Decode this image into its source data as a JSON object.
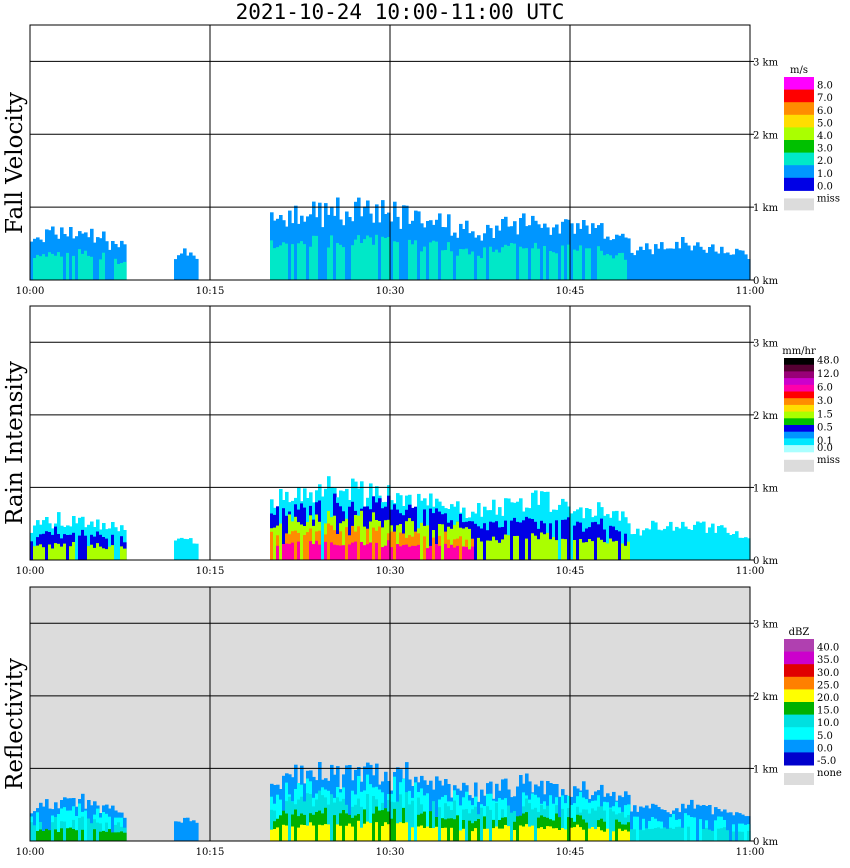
{
  "title": "2021-10-24   10:00-11:00 UTC",
  "time_ticks": [
    "10:00",
    "10:15",
    "10:30",
    "10:45",
    "11:00"
  ],
  "height_ticks": [
    "0 km",
    "1 km",
    "2 km",
    "3 km"
  ],
  "colors": {
    "grid": "#000000",
    "missing_bg": "#dcdcdc"
  },
  "chart_data": [
    {
      "type": "heatmap",
      "title": "Fall Velocity",
      "x": [
        "10:00",
        "10:15",
        "10:30",
        "10:45",
        "11:00"
      ],
      "y_ticks": [
        "0 km",
        "1 km",
        "2 km",
        "3 km"
      ],
      "xlim": [
        "10:00",
        "11:00"
      ],
      "ylim_km": [
        0,
        3.5
      ],
      "grid": true,
      "background": "white",
      "colorbar": {
        "unit": "m/s",
        "levels": [
          "8.0",
          "7.0",
          "6.0",
          "5.0",
          "4.0",
          "3.0",
          "2.0",
          "1.0",
          "0.0"
        ],
        "colors": [
          "#ff00ff",
          "#ff0000",
          "#ff8c00",
          "#ffdd00",
          "#aaff00",
          "#00c000",
          "#00e8c8",
          "#0096ff",
          "#0000e6"
        ],
        "missing_label": "miss",
        "missing_color": "#dcdcdc"
      },
      "echo_segments": [
        {
          "start": "10:00",
          "end": "10:08",
          "top_km": 0.8,
          "levels": [
            "1.0",
            "2.0"
          ]
        },
        {
          "start": "10:12",
          "end": "10:14",
          "top_km": 0.5,
          "levels": [
            "1.0"
          ]
        },
        {
          "start": "10:20",
          "end": "10:37",
          "top_km": 1.2,
          "levels": [
            "1.0",
            "2.0"
          ]
        },
        {
          "start": "10:37",
          "end": "10:50",
          "top_km": 1.0,
          "levels": [
            "1.0",
            "2.0"
          ]
        },
        {
          "start": "10:50",
          "end": "11:00",
          "top_km": 0.6,
          "levels": [
            "1.0"
          ]
        }
      ]
    },
    {
      "type": "heatmap",
      "title": "Rain Intensity",
      "x": [
        "10:00",
        "10:15",
        "10:30",
        "10:45",
        "11:00"
      ],
      "y_ticks": [
        "0 km",
        "1 km",
        "2 km",
        "3 km"
      ],
      "xlim": [
        "10:00",
        "11:00"
      ],
      "ylim_km": [
        0,
        3.5
      ],
      "grid": true,
      "background": "white",
      "colorbar": {
        "unit": "mm/hr",
        "levels": [
          "48.0",
          "",
          "12.0",
          "",
          "6.0",
          "",
          "3.0",
          "",
          "1.5",
          "",
          "0.5",
          "",
          "0.1",
          "0.0"
        ],
        "colors": [
          "#000000",
          "#550033",
          "#990077",
          "#cc00cc",
          "#ff00aa",
          "#ff0000",
          "#ff8c00",
          "#ffdd00",
          "#aaff00",
          "#00c000",
          "#0000e6",
          "#0096ff",
          "#00e8ff",
          "#aaffff"
        ],
        "missing_label": "miss",
        "missing_color": "#dcdcdc"
      },
      "echo_segments": [
        {
          "start": "10:00",
          "end": "10:08",
          "top_km": 0.7,
          "levels": [
            "0.1",
            "0.5",
            "1.5"
          ]
        },
        {
          "start": "10:12",
          "end": "10:14",
          "top_km": 0.4,
          "levels": [
            "0.1"
          ]
        },
        {
          "start": "10:20",
          "end": "10:37",
          "top_km": 1.2,
          "levels": [
            "0.1",
            "0.5",
            "1.5",
            "3.0",
            "6.0"
          ]
        },
        {
          "start": "10:37",
          "end": "10:50",
          "top_km": 1.0,
          "levels": [
            "0.1",
            "0.5",
            "1.5"
          ]
        },
        {
          "start": "10:50",
          "end": "11:00",
          "top_km": 0.6,
          "levels": [
            "0.1"
          ]
        }
      ]
    },
    {
      "type": "heatmap",
      "title": "Reflectivity",
      "x": [
        "10:00",
        "10:15",
        "10:30",
        "10:45",
        "11:00"
      ],
      "y_ticks": [
        "0 km",
        "1 km",
        "2 km",
        "3 km"
      ],
      "xlim": [
        "10:00",
        "11:00"
      ],
      "ylim_km": [
        0,
        3.5
      ],
      "grid": true,
      "background": "gray (none)",
      "colorbar": {
        "unit": "dBZ",
        "levels": [
          "40.0",
          "35.0",
          "30.0",
          "25.0",
          "20.0",
          "15.0",
          "10.0",
          "5.0",
          "0.0",
          "-5.0"
        ],
        "colors": [
          "#b040b0",
          "#cc00cc",
          "#e00000",
          "#ff8000",
          "#ffff00",
          "#00b000",
          "#00e0e0",
          "#00ffff",
          "#0096ff",
          "#0000cc"
        ],
        "missing_label": "none",
        "missing_color": "#dcdcdc"
      },
      "echo_segments": [
        {
          "start": "10:00",
          "end": "10:08",
          "top_km": 0.7,
          "levels": [
            "0.0",
            "5.0",
            "10.0",
            "15.0"
          ]
        },
        {
          "start": "10:12",
          "end": "10:14",
          "top_km": 0.4,
          "levels": [
            "0.0"
          ]
        },
        {
          "start": "10:20",
          "end": "10:37",
          "top_km": 1.2,
          "levels": [
            "0.0",
            "5.0",
            "10.0",
            "15.0",
            "20.0"
          ]
        },
        {
          "start": "10:37",
          "end": "10:50",
          "top_km": 1.0,
          "levels": [
            "0.0",
            "5.0",
            "10.0",
            "15.0",
            "20.0"
          ]
        },
        {
          "start": "10:50",
          "end": "11:00",
          "top_km": 0.6,
          "levels": [
            "0.0",
            "5.0",
            "10.0"
          ]
        }
      ]
    }
  ]
}
